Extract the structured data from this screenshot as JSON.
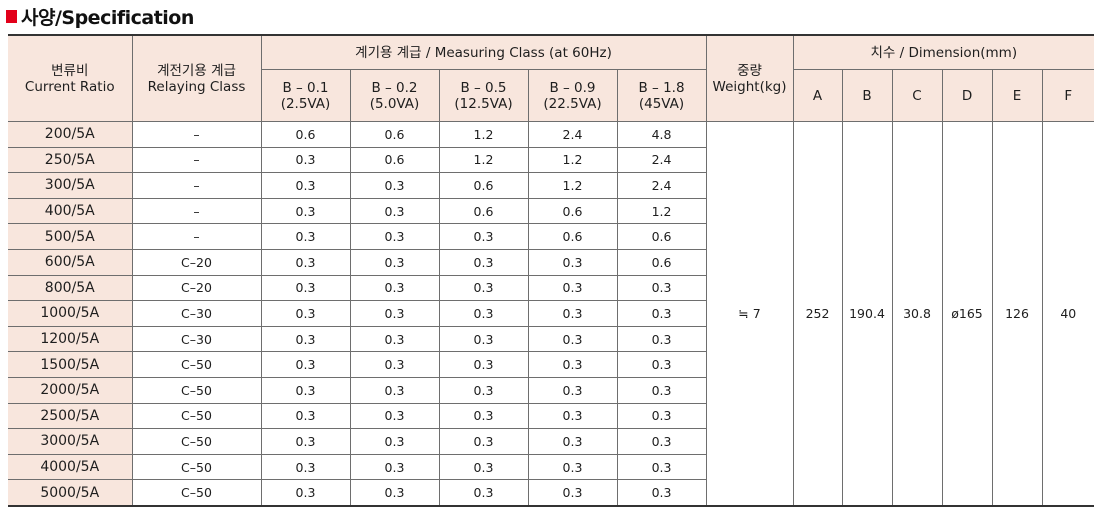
{
  "section": {
    "title": "사양/Specification",
    "accent_color": "#e2001a",
    "header_bg": "#f8e6dd"
  },
  "headers": {
    "ratio_ko": "변류비",
    "ratio_en": "Current Ratio",
    "relay_ko": "계전기용 계급",
    "relay_en": "Relaying  Class",
    "measuring": "계기용 계급 / Measuring Class (at 60Hz)",
    "measuring_cols": [
      {
        "l1": "B – 0.1",
        "l2": "(2.5VA)"
      },
      {
        "l1": "B – 0.2",
        "l2": "(5.0VA)"
      },
      {
        "l1": "B – 0.5",
        "l2": "(12.5VA)"
      },
      {
        "l1": "B – 0.9",
        "l2": "(22.5VA)"
      },
      {
        "l1": "B – 1.8",
        "l2": "(45VA)"
      }
    ],
    "weight_ko": "중량",
    "weight_en": "Weight(kg)",
    "dimension": "치수 / Dimension(mm)",
    "dim_cols": [
      "A",
      "B",
      "C",
      "D",
      "E",
      "F"
    ]
  },
  "rows": [
    {
      "ratio": "200/5A",
      "relay": "–",
      "m": [
        "0.6",
        "0.6",
        "1.2",
        "2.4",
        "4.8"
      ]
    },
    {
      "ratio": "250/5A",
      "relay": "–",
      "m": [
        "0.3",
        "0.6",
        "1.2",
        "1.2",
        "2.4"
      ]
    },
    {
      "ratio": "300/5A",
      "relay": "–",
      "m": [
        "0.3",
        "0.3",
        "0.6",
        "1.2",
        "2.4"
      ]
    },
    {
      "ratio": "400/5A",
      "relay": "–",
      "m": [
        "0.3",
        "0.3",
        "0.6",
        "0.6",
        "1.2"
      ]
    },
    {
      "ratio": "500/5A",
      "relay": "–",
      "m": [
        "0.3",
        "0.3",
        "0.3",
        "0.6",
        "0.6"
      ]
    },
    {
      "ratio": "600/5A",
      "relay": "C–20",
      "m": [
        "0.3",
        "0.3",
        "0.3",
        "0.3",
        "0.6"
      ]
    },
    {
      "ratio": "800/5A",
      "relay": "C–20",
      "m": [
        "0.3",
        "0.3",
        "0.3",
        "0.3",
        "0.3"
      ]
    },
    {
      "ratio": "1000/5A",
      "relay": "C–30",
      "m": [
        "0.3",
        "0.3",
        "0.3",
        "0.3",
        "0.3"
      ]
    },
    {
      "ratio": "1200/5A",
      "relay": "C–30",
      "m": [
        "0.3",
        "0.3",
        "0.3",
        "0.3",
        "0.3"
      ]
    },
    {
      "ratio": "1500/5A",
      "relay": "C–50",
      "m": [
        "0.3",
        "0.3",
        "0.3",
        "0.3",
        "0.3"
      ]
    },
    {
      "ratio": "2000/5A",
      "relay": "C–50",
      "m": [
        "0.3",
        "0.3",
        "0.3",
        "0.3",
        "0.3"
      ]
    },
    {
      "ratio": "2500/5A",
      "relay": "C–50",
      "m": [
        "0.3",
        "0.3",
        "0.3",
        "0.3",
        "0.3"
      ]
    },
    {
      "ratio": "3000/5A",
      "relay": "C–50",
      "m": [
        "0.3",
        "0.3",
        "0.3",
        "0.3",
        "0.3"
      ]
    },
    {
      "ratio": "4000/5A",
      "relay": "C–50",
      "m": [
        "0.3",
        "0.3",
        "0.3",
        "0.3",
        "0.3"
      ]
    },
    {
      "ratio": "5000/5A",
      "relay": "C–50",
      "m": [
        "0.3",
        "0.3",
        "0.3",
        "0.3",
        "0.3"
      ]
    }
  ],
  "shared": {
    "weight": "≒ 7",
    "dims": [
      "252",
      "190.4",
      "30.8",
      "ø165",
      "126",
      "40"
    ]
  }
}
